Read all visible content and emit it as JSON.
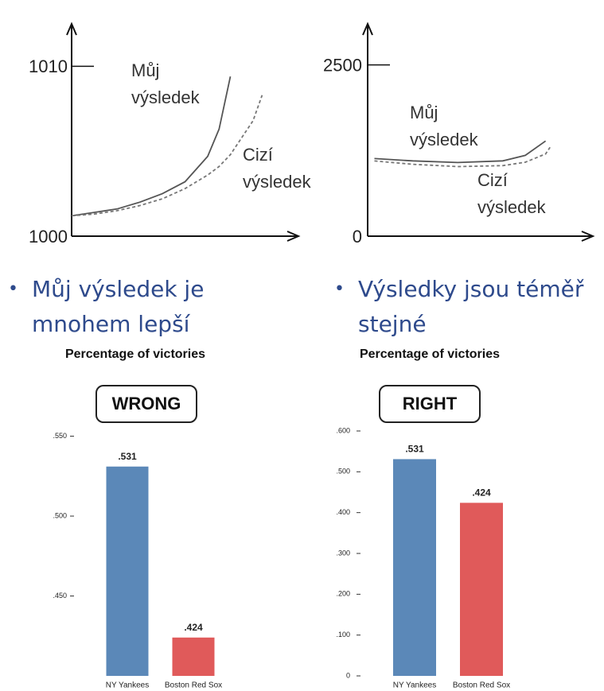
{
  "chart_data": [
    {
      "type": "line",
      "caption": "Můj výsledek je mnohem lepší",
      "x": [
        0,
        1,
        2,
        3,
        4,
        5,
        6,
        6.5,
        7,
        8,
        8.4
      ],
      "xlim": [
        0,
        10
      ],
      "ylim": [
        1000,
        1012.5
      ],
      "yticks": [
        1000,
        1010
      ],
      "series": [
        {
          "name": "Můj výsledek",
          "color": "#555555",
          "line_style": "solid",
          "values": [
            1001.2,
            1001.4,
            1001.6,
            1002.0,
            1002.5,
            1003.2,
            1004.7,
            1006.3,
            1009.4,
            null,
            null
          ]
        },
        {
          "name": "Cizí výsledek",
          "color": "#777777",
          "line_style": "dashed",
          "values": [
            1001.2,
            1001.3,
            1001.5,
            1001.8,
            1002.2,
            1002.8,
            1003.6,
            1004.1,
            1004.8,
            1006.8,
            1008.3
          ]
        }
      ]
    },
    {
      "type": "line",
      "caption": "Výsledky jsou téměř stejné",
      "x": [
        0.3,
        2,
        4,
        6,
        7,
        7.9,
        8.1
      ],
      "xlim": [
        0,
        10
      ],
      "ylim": [
        0,
        3100
      ],
      "yticks": [
        0,
        2500
      ],
      "series": [
        {
          "name": "Můj výsledek",
          "color": "#555555",
          "line_style": "solid",
          "values": [
            1133,
            1100,
            1075,
            1100,
            1180,
            1390,
            null
          ]
        },
        {
          "name": "Cizí výsledek",
          "color": "#777777",
          "line_style": "dashed",
          "values": [
            1098,
            1050,
            1016,
            1030,
            1080,
            1200,
            1297
          ]
        }
      ]
    },
    {
      "type": "bar",
      "title": "Percentage of victories",
      "annotation": "WRONG",
      "categories": [
        "NY Yankees",
        "Boston Red Sox"
      ],
      "values": [
        0.531,
        0.424
      ],
      "value_labels": [
        ".531",
        ".424"
      ],
      "colors": [
        "#5b88b8",
        "#e05a5a"
      ],
      "ylim": [
        0.4,
        0.555
      ],
      "yticks": [
        {
          "value": 0.45,
          "label": ".450"
        },
        {
          "value": 0.5,
          "label": ".500"
        },
        {
          "value": 0.55,
          "label": ".550"
        }
      ]
    },
    {
      "type": "bar",
      "title": "Percentage of victories",
      "annotation": "RIGHT",
      "categories": [
        "NY Yankees",
        "Boston Red Sox"
      ],
      "values": [
        0.531,
        0.424
      ],
      "value_labels": [
        ".531",
        ".424"
      ],
      "colors": [
        "#5b88b8",
        "#e05a5a"
      ],
      "ylim": [
        0,
        0.6
      ],
      "yticks": [
        0,
        {
          "value": 0.1,
          "label": ".100"
        },
        {
          "value": 0.2,
          "label": ".200"
        },
        {
          "value": 0.3,
          "label": ".300"
        },
        {
          "value": 0.4,
          "label": ".400"
        },
        {
          "value": 0.5,
          "label": ".500"
        },
        {
          "value": 0.6,
          "label": ".600"
        }
      ]
    }
  ]
}
